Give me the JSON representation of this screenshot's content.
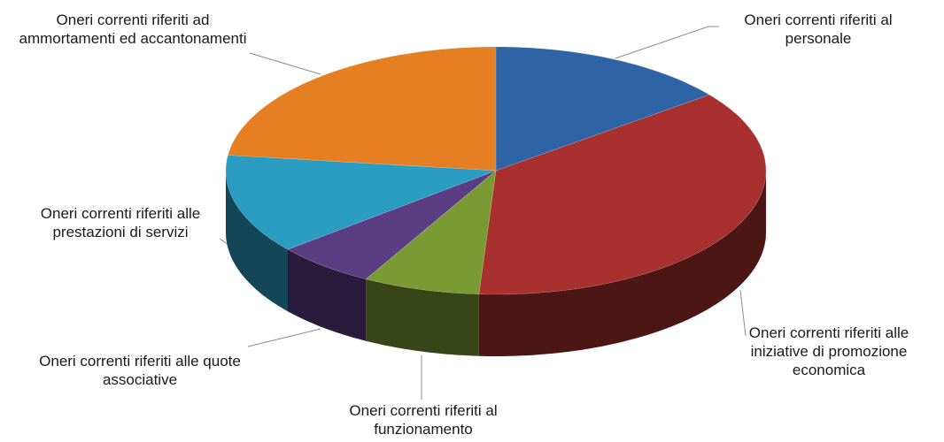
{
  "chart_data": {
    "type": "pie3d",
    "categories": [
      "Oneri correnti riferiti al personale",
      "Oneri correnti riferiti alle iniziative di promozione economica",
      "Oneri correnti riferiti al funzionamento",
      "Oneri correnti riferiti alle quote associative",
      "Oneri correnti riferiti alle prestazioni di servizi",
      "Oneri correnti riferiti ad ammortamenti ed accantonamenti"
    ],
    "values": [
      14.5,
      36.5,
      7,
      6,
      13,
      23
    ],
    "colors": [
      "#2e63a6",
      "#a8302e",
      "#7a9a34",
      "#5a3d82",
      "#2b9cc2",
      "#e57f22"
    ]
  }
}
